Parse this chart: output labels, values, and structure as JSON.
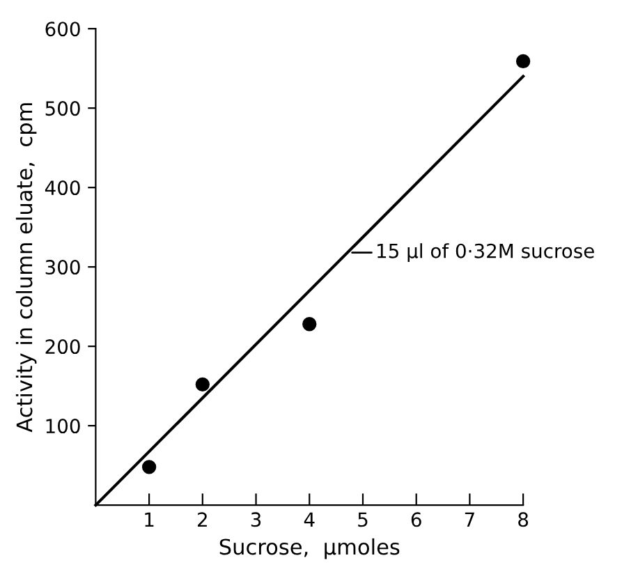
{
  "chart_data": {
    "type": "scatter",
    "xlabel": "Sucrose,  µmoles",
    "ylabel": "Activity in column eluate,  cpm",
    "xlim": [
      0,
      8
    ],
    "ylim": [
      0,
      600
    ],
    "xticks": [
      1,
      2,
      3,
      4,
      5,
      6,
      7,
      8
    ],
    "yticks": [
      100,
      200,
      300,
      400,
      500,
      600
    ],
    "marker": "circle",
    "grid": false,
    "legend": false,
    "series": [
      {
        "color": "#000000",
        "x": [
          1,
          2,
          4,
          8
        ],
        "values": [
          48,
          152,
          228,
          559
        ]
      },
      {
        "type": "line",
        "color": "#000000",
        "x": [
          0,
          8
        ],
        "values": [
          0,
          540
        ],
        "marker": "none",
        "line_style": "solid"
      }
    ],
    "annotations": [
      {
        "text": "15 µl of 0·32M sucrose",
        "x": 4.8,
        "y": 318
      }
    ]
  }
}
